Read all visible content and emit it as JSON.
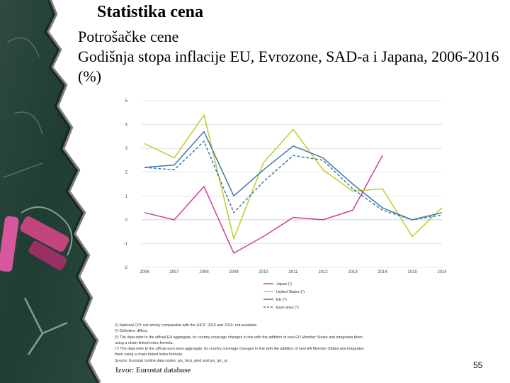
{
  "slide": {
    "title": "Statistika cena",
    "subtitle": "Potrošačke cene",
    "heading": "Godišnja stopa inflacije EU, Evrozone, SAD-a i Japana, 2006-2016 (%)",
    "source": "Izvor: Eurostat database",
    "page_number": "55"
  },
  "footnotes": [
    "(¹) National CPI: not strictly comparable with the HICP. 2015 and 2016: not available.",
    "(²) Definition differs.",
    "(³) The data refer to the official EU aggregate, its country coverage changes in line with the addition of new EU Member States and integrates them",
    "using a chain-linked index formula.",
    "(⁴) The data refer to the official euro area aggregate, its country coverage changes in line with the addition of new EA Member States and integrates",
    "them using a chain-linked index formula.",
    "Source: Eurostat (online data codes: prc_hicp_aind and prc_ipc_a)"
  ],
  "colors": {
    "japan": "#cc3f9a",
    "united_states": "#bccf2a",
    "eu": "#3e78ae",
    "euro_area": "#3e78ae",
    "grid": "#d0d0d0",
    "chalkboard": "#1e3a33"
  },
  "chart_data": {
    "type": "line",
    "title": "",
    "xlabel": "",
    "ylabel": "",
    "x": [
      2006,
      2007,
      2008,
      2009,
      2010,
      2011,
      2012,
      2013,
      2014,
      2015,
      2016
    ],
    "x_tick_labels": [
      "2006",
      "2007",
      "2008",
      "2009",
      "2010",
      "2011",
      "2012",
      "2013",
      "2014",
      "2015",
      "2016"
    ],
    "ylim": [
      -2,
      5
    ],
    "yticks": [
      -2,
      -1,
      0,
      1,
      2,
      3,
      4,
      5
    ],
    "grid": true,
    "legend_position": "bottom",
    "series": [
      {
        "name": "Japan (¹)",
        "values": [
          0.3,
          0.0,
          1.4,
          -1.4,
          -0.7,
          0.1,
          0.0,
          0.4,
          2.7,
          null,
          null
        ],
        "dashed": false,
        "color_key": "japan"
      },
      {
        "name": "United States (²)",
        "values": [
          3.2,
          2.6,
          4.4,
          -0.8,
          2.4,
          3.8,
          2.1,
          1.2,
          1.3,
          -0.7,
          0.5
        ],
        "dashed": false,
        "color_key": "united_states"
      },
      {
        "name": "EU (³)",
        "values": [
          2.2,
          2.3,
          3.7,
          1.0,
          2.1,
          3.1,
          2.6,
          1.5,
          0.5,
          0.0,
          0.3
        ],
        "dashed": false,
        "color_key": "eu"
      },
      {
        "name": "Euro area (⁴)",
        "values": [
          2.2,
          2.1,
          3.3,
          0.3,
          1.6,
          2.7,
          2.5,
          1.3,
          0.4,
          0.0,
          0.2
        ],
        "dashed": true,
        "color_key": "euro_area"
      }
    ]
  }
}
